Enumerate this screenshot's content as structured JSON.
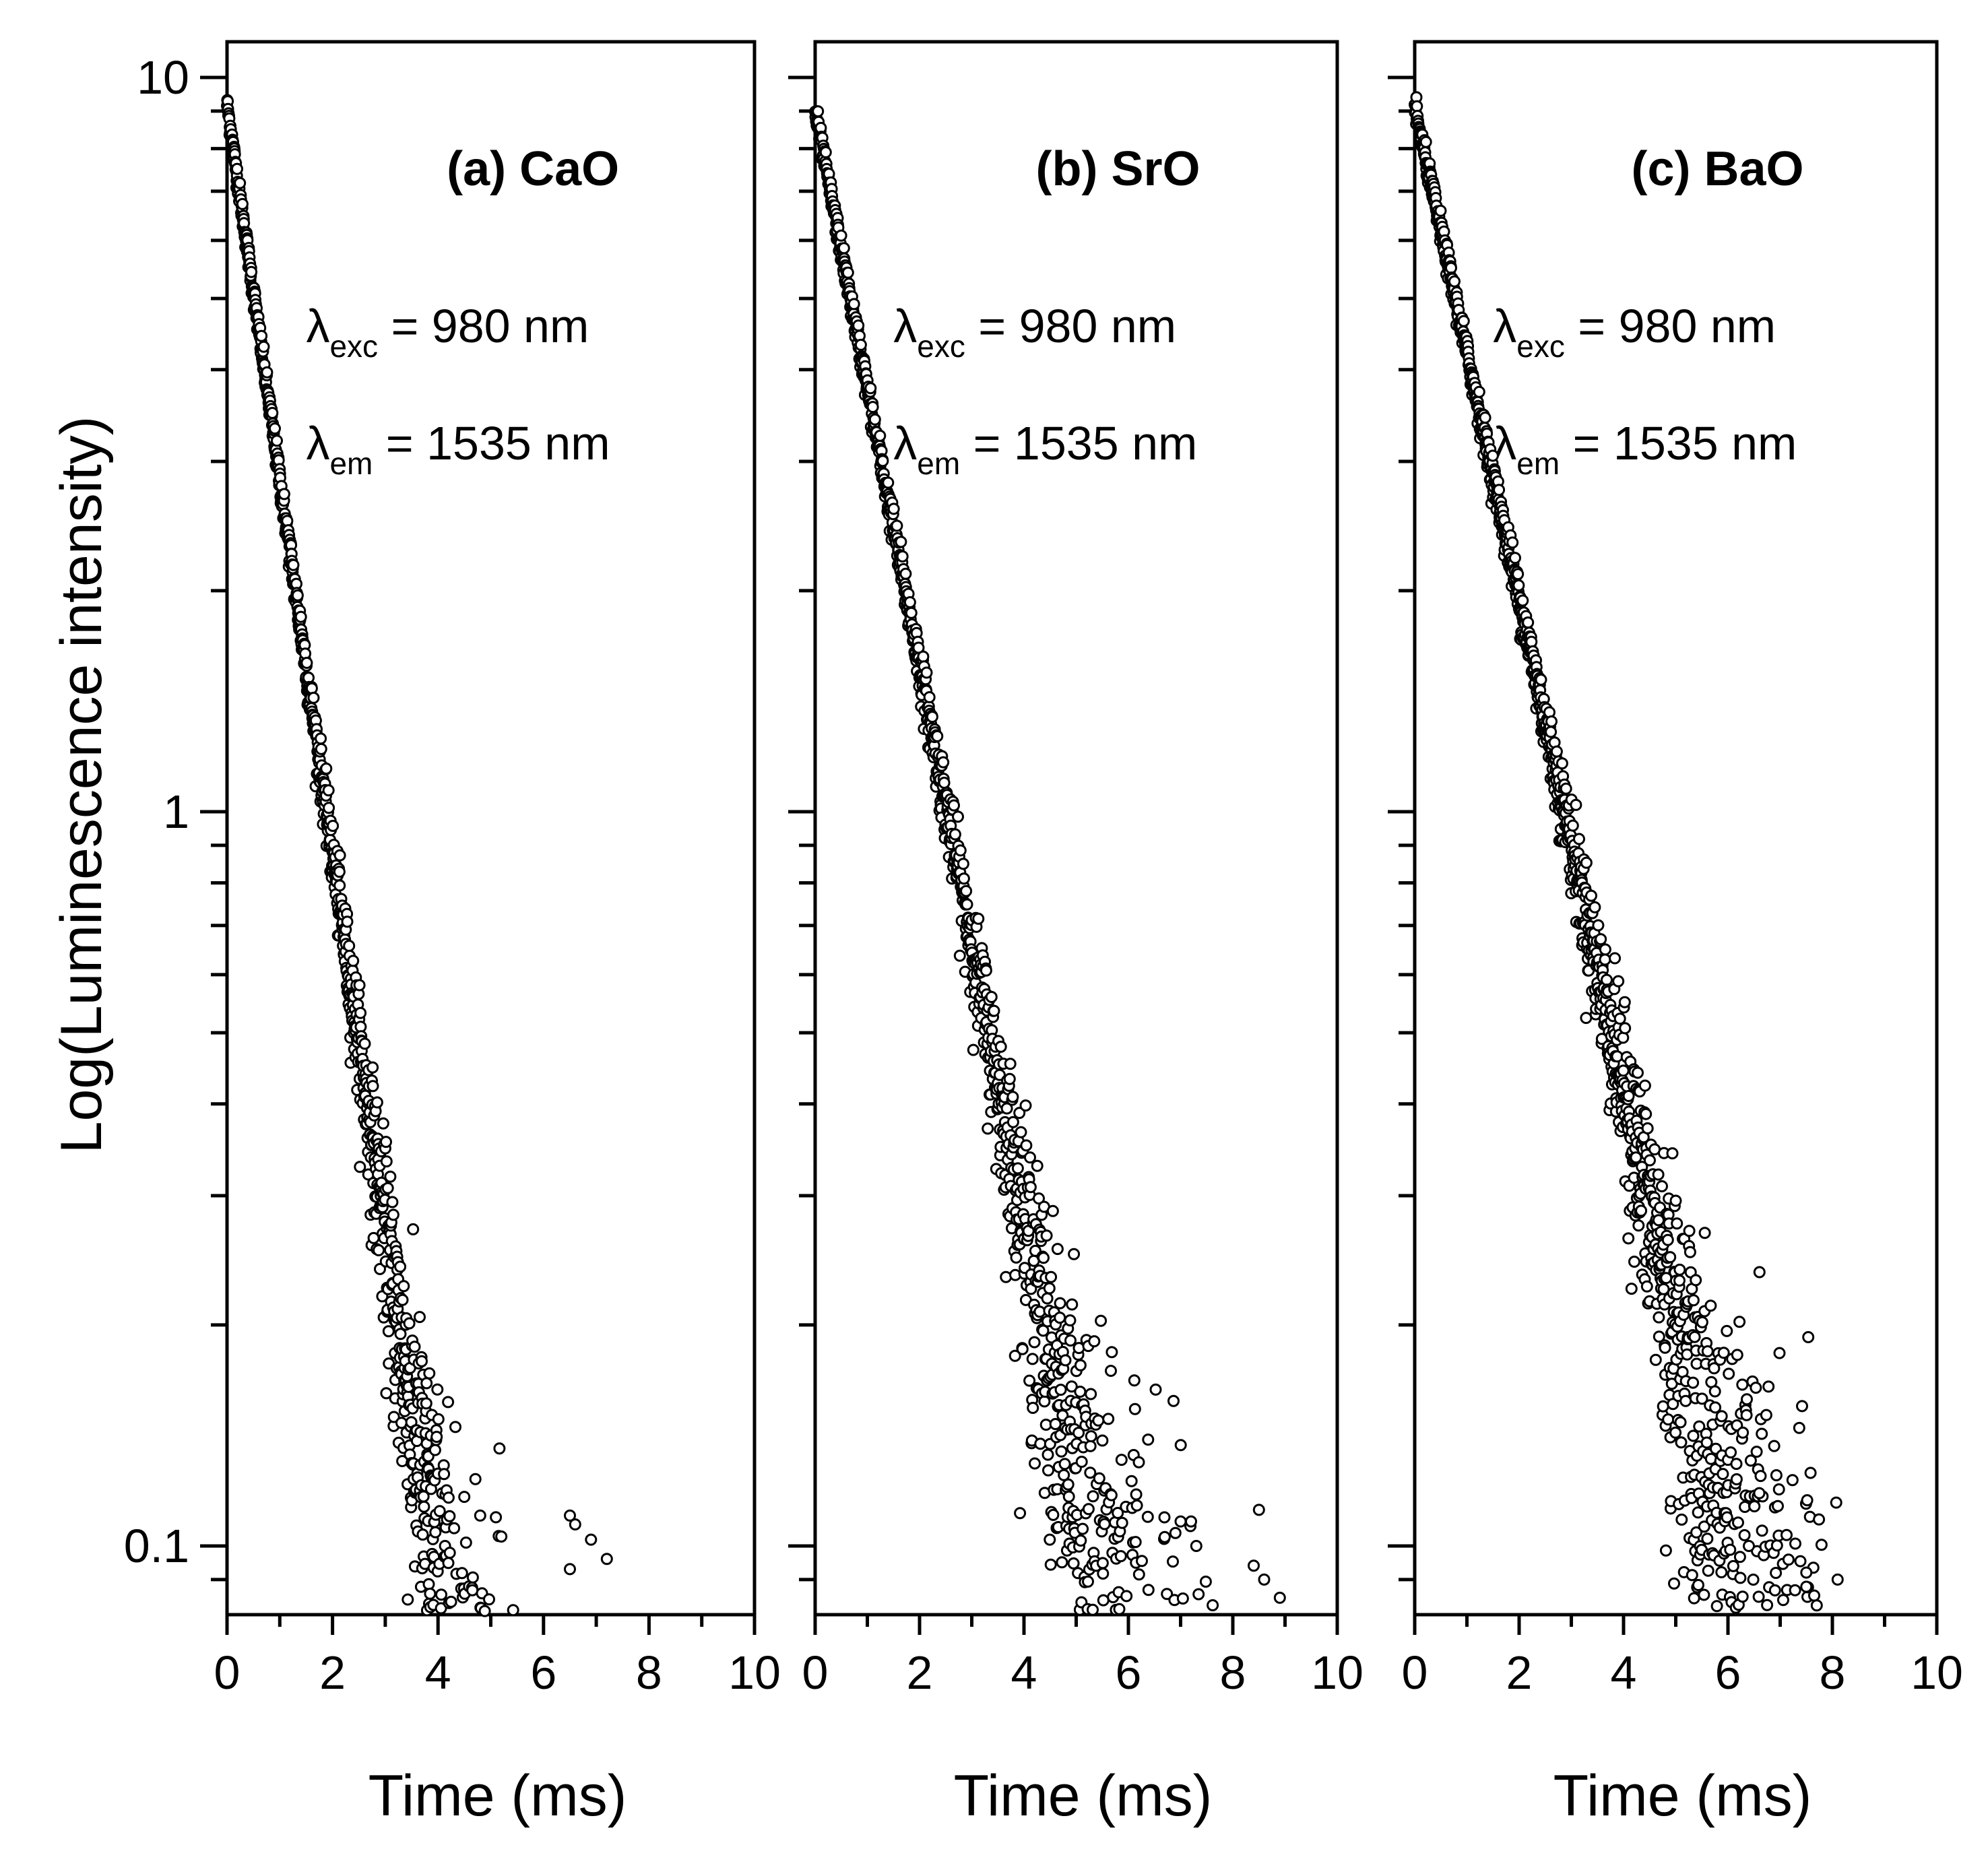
{
  "figure": {
    "ylabel": "Log(Luminescence intensity)",
    "background": "#ffffff",
    "ink": "#000000"
  },
  "chart_data": [
    {
      "type": "scatter",
      "title": "(a) CaO",
      "xlabel": "Time (ms)",
      "ylabel": "Log(Luminescence intensity)",
      "xlim": [
        0,
        10
      ],
      "ylim": [
        0.08,
        11
      ],
      "yscale": "log",
      "xticks": [
        "0",
        "2",
        "4",
        "6",
        "8",
        "10"
      ],
      "yticks": [
        "0.1",
        "1",
        "10"
      ],
      "annotations": {
        "exc": {
          "symbol": "λ",
          "sub": "exc",
          "text": "= 980 nm"
        },
        "em": {
          "symbol": "λ",
          "sub": "em",
          "text": "= 1535 nm"
        }
      },
      "model": {
        "i0": 9.2,
        "tau_ms": 0.85,
        "noise_floor": 0.04,
        "t_end_ms": 7.2
      },
      "outliers": [
        [
          4.8,
          0.11
        ],
        [
          5.2,
          0.103
        ],
        [
          6.5,
          0.11
        ],
        [
          6.6,
          0.107
        ],
        [
          6.9,
          0.102
        ],
        [
          7.2,
          0.096
        ],
        [
          6.5,
          0.093
        ]
      ]
    },
    {
      "type": "scatter",
      "title": "(b) SrO",
      "xlabel": "Time (ms)",
      "ylabel": "",
      "xlim": [
        0,
        10
      ],
      "ylim": [
        0.08,
        11
      ],
      "yscale": "log",
      "xticks": [
        "0",
        "2",
        "4",
        "6",
        "8",
        "10"
      ],
      "yticks": [],
      "annotations": {
        "exc": {
          "symbol": "λ",
          "sub": "exc",
          "text": "= 980 nm"
        },
        "em": {
          "symbol": "λ",
          "sub": "em",
          "text": "= 1535 nm"
        }
      },
      "model": {
        "i0": 9.0,
        "tau_ms": 1.15,
        "noise_floor": 0.05,
        "t_end_ms": 9.0
      },
      "outliers": [
        [
          6.1,
          0.133
        ],
        [
          6.2,
          0.13
        ],
        [
          7.0,
          0.108
        ],
        [
          7.2,
          0.108
        ],
        [
          7.3,
          0.1
        ],
        [
          8.5,
          0.112
        ],
        [
          8.4,
          0.094
        ],
        [
          8.6,
          0.09
        ],
        [
          8.9,
          0.085
        ]
      ]
    },
    {
      "type": "scatter",
      "title": "(c) BaO",
      "xlabel": "Time (ms)",
      "ylabel": "",
      "xlim": [
        0,
        10
      ],
      "ylim": [
        0.08,
        11
      ],
      "yscale": "log",
      "xticks": [
        "0",
        "2",
        "4",
        "6",
        "8",
        "10"
      ],
      "yticks": [],
      "annotations": {
        "exc": {
          "symbol": "λ",
          "sub": "exc",
          "text": "= 980 nm"
        },
        "em": {
          "symbol": "λ",
          "sub": "em",
          "text": "= 1535 nm"
        }
      },
      "model": {
        "i0": 9.1,
        "tau_ms": 1.3,
        "noise_floor": 0.055,
        "t_end_ms": 8.1
      },
      "outliers": [
        [
          6.6,
          0.118
        ],
        [
          6.4,
          0.1
        ],
        [
          7.5,
          0.092
        ],
        [
          7.5,
          0.088
        ],
        [
          8.1,
          0.09
        ],
        [
          7.7,
          0.083
        ],
        [
          6.9,
          0.087
        ]
      ]
    }
  ]
}
